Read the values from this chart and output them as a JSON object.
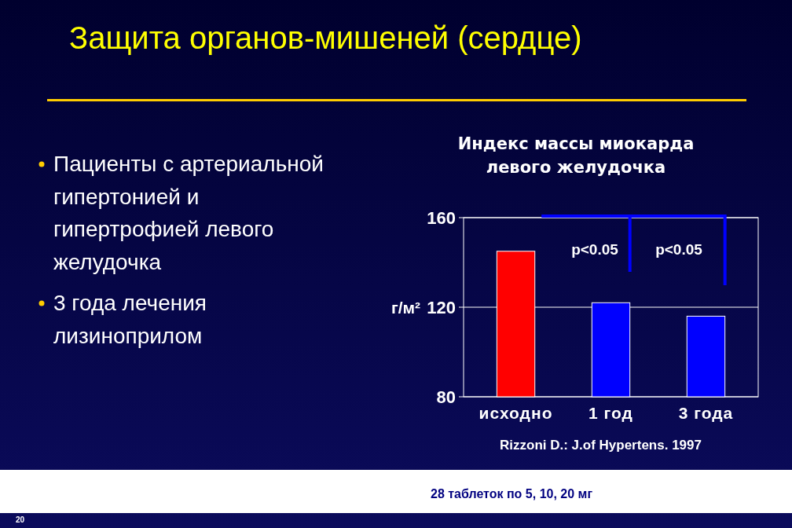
{
  "chart_data": {
    "type": "bar",
    "title": "Защита органов-мишеней (сердце)",
    "subtitle": "Индекс массы миокарда\nлевого желудочка",
    "ylabel": "г/м²",
    "categories": [
      "исходно",
      "1 год",
      "3 года"
    ],
    "values": [
      145,
      122,
      116
    ],
    "colors": [
      "#ff0000",
      "#0000ff",
      "#0000ff"
    ],
    "ylim": [
      80,
      160
    ],
    "yticks": [
      80,
      120,
      160
    ],
    "grid": "y",
    "annotations": [
      "Пациенты с артериальной\nгипертонией и\nгипертрофией левого\nжелудочка",
      "3 года лечения\nлизиноприлом",
      "p<0.05",
      "p<0.05",
      "Rizzoni D.: J.of Hypertens. 1997",
      "28 таблеток по 5, 10, 20 мг",
      "20"
    ]
  }
}
